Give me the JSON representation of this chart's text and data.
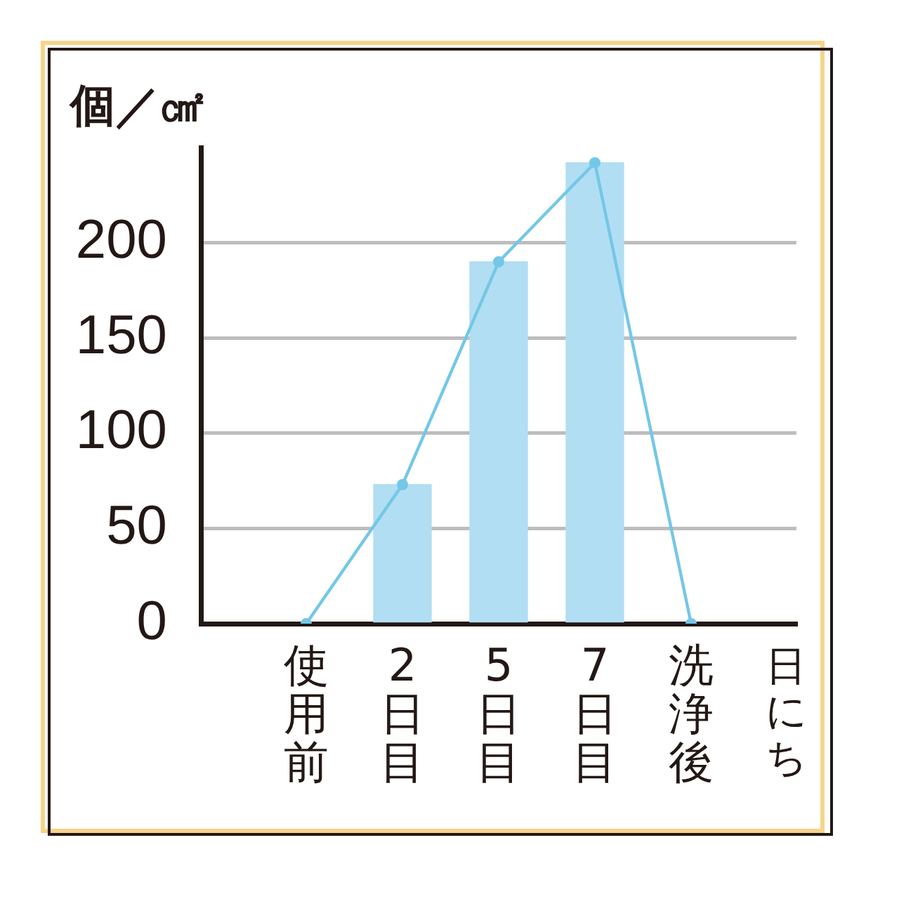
{
  "chart_data": {
    "type": "bar",
    "ylabel": "個／㎠",
    "xlabel": "日にち",
    "categories": [
      "使用前",
      "2日目",
      "5日目",
      "7日目",
      "洗浄後"
    ],
    "series": [
      {
        "color": "#b1def2",
        "values": [
          null,
          73,
          190,
          242,
          null
        ]
      },
      {
        "type": "line",
        "color": "#74c7e7",
        "values": [
          0,
          73,
          190,
          242,
          0
        ]
      }
    ],
    "ylim": [
      0,
      250
    ],
    "yticks": [
      0,
      50,
      100,
      150,
      200
    ],
    "grid": "y",
    "marker": "circle",
    "legend": false
  }
}
